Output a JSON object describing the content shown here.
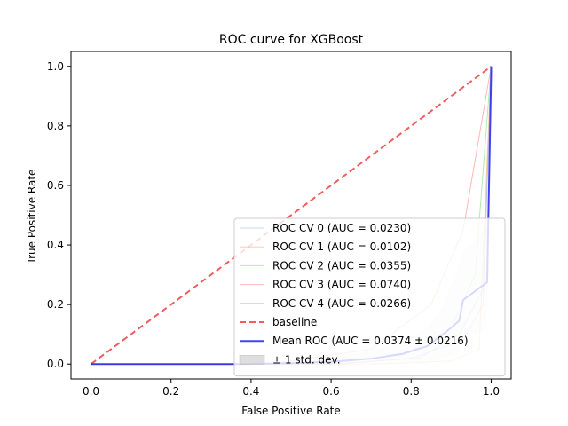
{
  "chart_data": {
    "type": "line",
    "title": "ROC curve for XGBoost",
    "xlabel": "False Positive Rate",
    "ylabel": "True Positive Rate",
    "xlim": [
      -0.05,
      1.05
    ],
    "ylim": [
      -0.05,
      1.05
    ],
    "x_ticks": [
      "0.0",
      "0.2",
      "0.4",
      "0.6",
      "0.8",
      "1.0"
    ],
    "y_ticks": [
      "0.0",
      "0.2",
      "0.4",
      "0.6",
      "0.8",
      "1.0"
    ],
    "grid": false,
    "legend_position": "lower right",
    "series": [
      {
        "name": "ROC CV 0 (AUC = 0.0230)",
        "color": "#aec7e8",
        "style": "solid",
        "x": [
          0.0,
          0.62,
          0.8,
          0.93,
          0.98,
          1.0
        ],
        "y": [
          0.0,
          0.0,
          0.02,
          0.08,
          0.2,
          1.0
        ]
      },
      {
        "name": "ROC CV 1 (AUC = 0.0102)",
        "color": "#ffbb78",
        "style": "solid",
        "x": [
          0.0,
          0.7,
          0.9,
          0.97,
          1.0
        ],
        "y": [
          0.0,
          0.0,
          0.01,
          0.05,
          1.0
        ]
      },
      {
        "name": "ROC CV 2 (AUC = 0.0355)",
        "color": "#98df8a",
        "style": "solid",
        "x": [
          0.0,
          0.58,
          0.78,
          0.9,
          0.96,
          1.0
        ],
        "y": [
          0.0,
          0.0,
          0.03,
          0.12,
          0.3,
          1.0
        ]
      },
      {
        "name": "ROC CV 3 (AUC = 0.0740)",
        "color": "#ff9896",
        "style": "solid",
        "x": [
          0.0,
          0.45,
          0.7,
          0.85,
          0.93,
          1.0
        ],
        "y": [
          0.0,
          0.0,
          0.05,
          0.2,
          0.45,
          1.0
        ]
      },
      {
        "name": "ROC CV 4 (AUC = 0.0266)",
        "color": "#c5b0d5",
        "style": "solid",
        "x": [
          0.0,
          0.6,
          0.82,
          0.92,
          0.98,
          1.0
        ],
        "y": [
          0.0,
          0.0,
          0.02,
          0.1,
          0.25,
          1.0
        ]
      },
      {
        "name": "baseline",
        "color": "#ee3333",
        "style": "dashed",
        "x": [
          0.0,
          1.0
        ],
        "y": [
          0.0,
          1.0
        ]
      },
      {
        "name": "Mean ROC (AUC = 0.0374 ± 0.0216)",
        "color": "#2222ee",
        "style": "solid",
        "x": [
          0.0,
          0.38,
          0.5,
          0.6,
          0.7,
          0.78,
          0.84,
          0.88,
          0.92,
          0.93,
          0.99,
          1.0,
          1.0
        ],
        "y": [
          0.0,
          0.0,
          0.003,
          0.008,
          0.018,
          0.035,
          0.06,
          0.1,
          0.145,
          0.215,
          0.275,
          0.98,
          1.0
        ]
      }
    ],
    "std_band": {
      "name": "± 1 std. dev.",
      "color": "#c8c8c8",
      "x": [
        0.0,
        0.38,
        0.5,
        0.6,
        0.7,
        0.78,
        0.84,
        0.88,
        0.92,
        0.93,
        0.99,
        1.0
      ],
      "upper": [
        0.0,
        0.0,
        0.012,
        0.025,
        0.045,
        0.075,
        0.12,
        0.2,
        0.33,
        0.38,
        0.46,
        1.0
      ],
      "lower": [
        0.0,
        0.0,
        0.0,
        0.0,
        0.0,
        0.0,
        0.0,
        0.02,
        0.04,
        0.08,
        0.12,
        1.0
      ]
    }
  }
}
